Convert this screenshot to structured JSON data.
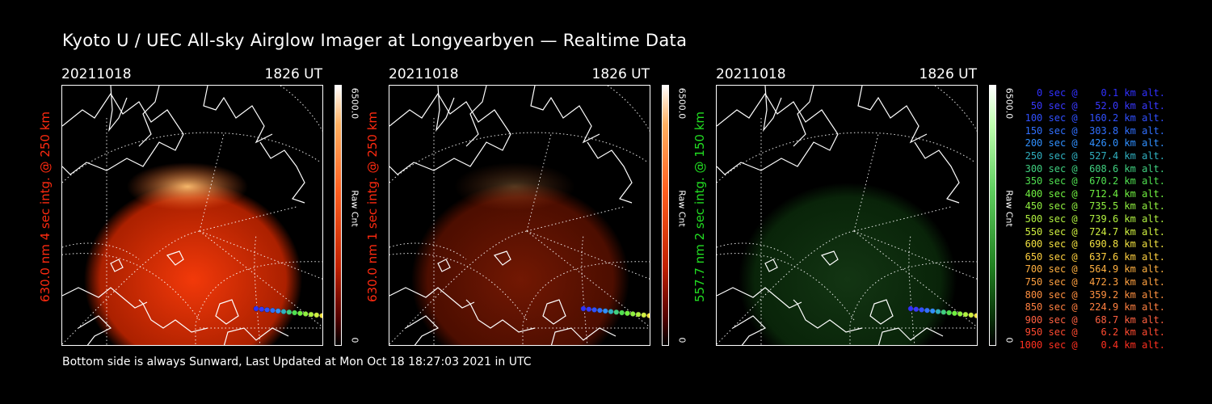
{
  "title": "Kyoto U / UEC All-sky Airglow Imager at Longyearbyen — Realtime Data",
  "footer": "Bottom side is always Sunward, Last Updated at Mon Oct 18 18:27:03 2021 in UTC",
  "panels": [
    {
      "date": "20211018",
      "time": "1826 UT",
      "ylabel": "630.0 nm 4 sec intg. @ 250 km",
      "ylabel_color": "#ff2a10",
      "cbar_max": "6500.0",
      "cbar_min": "0",
      "cbar_unit": "Raw Cnt",
      "colormap": "red",
      "glow_level": 1.0
    },
    {
      "date": "20211018",
      "time": "1826 UT",
      "ylabel": "630.0 nm 1 sec intg. @ 250 km",
      "ylabel_color": "#ff2a10",
      "cbar_max": "6500.0",
      "cbar_min": "0",
      "cbar_unit": "Raw Cnt",
      "colormap": "red",
      "glow_level": 0.3
    },
    {
      "date": "20211018",
      "time": "1826 UT",
      "ylabel": "557.7 nm 2 sec intg. @ 150 km",
      "ylabel_color": "#22dd22",
      "cbar_max": "6500.0",
      "cbar_min": "0",
      "cbar_unit": "Raw Cnt",
      "colormap": "green",
      "glow_level": 0.45
    }
  ],
  "legend": [
    {
      "text": "  0 sec @    0.1 km alt.",
      "color": "#3030ff"
    },
    {
      "text": " 50 sec @   52.0 km alt.",
      "color": "#3838ff"
    },
    {
      "text": "100 sec @  160.2 km alt.",
      "color": "#3050ff"
    },
    {
      "text": "150 sec @  303.8 km alt.",
      "color": "#3070ff"
    },
    {
      "text": "200 sec @  426.0 km alt.",
      "color": "#3090ff"
    },
    {
      "text": "250 sec @  527.4 km alt.",
      "color": "#30b0c0"
    },
    {
      "text": "300 sec @  608.6 km alt.",
      "color": "#40d080"
    },
    {
      "text": "350 sec @  670.2 km alt.",
      "color": "#50e050"
    },
    {
      "text": "400 sec @  712.4 km alt.",
      "color": "#70f040"
    },
    {
      "text": "450 sec @  735.5 km alt.",
      "color": "#90f040"
    },
    {
      "text": "500 sec @  739.6 km alt.",
      "color": "#b0f040"
    },
    {
      "text": "550 sec @  724.7 km alt.",
      "color": "#d0f040"
    },
    {
      "text": "600 sec @  690.8 km alt.",
      "color": "#f0e040"
    },
    {
      "text": "650 sec @  637.6 km alt.",
      "color": "#ffd040"
    },
    {
      "text": "700 sec @  564.9 km alt.",
      "color": "#ffb040"
    },
    {
      "text": "750 sec @  472.3 km alt.",
      "color": "#ffa040"
    },
    {
      "text": "800 sec @  359.2 km alt.",
      "color": "#ff9040"
    },
    {
      "text": "850 sec @  224.9 km alt.",
      "color": "#ff8040"
    },
    {
      "text": "900 sec @   68.7 km alt.",
      "color": "#ff6040"
    },
    {
      "text": "950 sec @    6.2 km alt.",
      "color": "#ff4a30"
    },
    {
      "text": "1000 sec @    0.4 km alt.",
      "color": "#ff3020"
    }
  ]
}
